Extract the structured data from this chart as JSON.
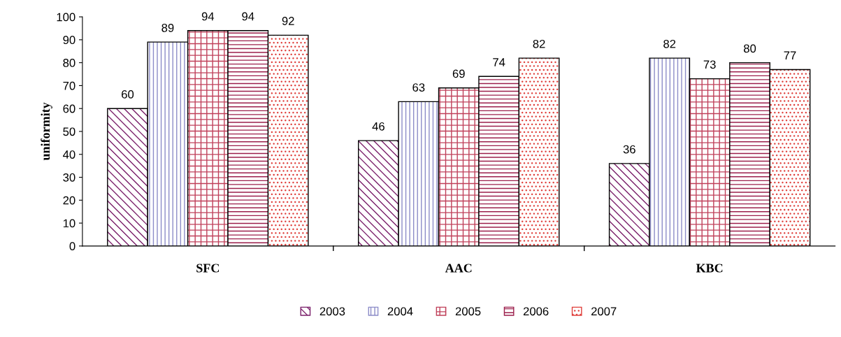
{
  "chart_data": {
    "type": "bar",
    "ylabel": "uniformity",
    "categories": [
      "SFC",
      "AAC",
      "KBC"
    ],
    "series": [
      {
        "name": "2003",
        "color": "#7a1f6a",
        "values": [
          60,
          46,
          36
        ]
      },
      {
        "name": "2004",
        "color": "#8c8cc8",
        "values": [
          89,
          63,
          82
        ]
      },
      {
        "name": "2005",
        "color": "#c0405a",
        "values": [
          94,
          69,
          73
        ]
      },
      {
        "name": "2006",
        "color": "#9c1f4c",
        "values": [
          94,
          74,
          80
        ]
      },
      {
        "name": "2007",
        "color": "#e0403c",
        "values": [
          92,
          82,
          77
        ]
      }
    ],
    "ylim": [
      0,
      100
    ],
    "yticks": [
      0,
      10,
      20,
      30,
      40,
      50,
      60,
      70,
      80,
      90,
      100
    ],
    "data_labels": true,
    "grid": false,
    "legend": "bottom"
  }
}
